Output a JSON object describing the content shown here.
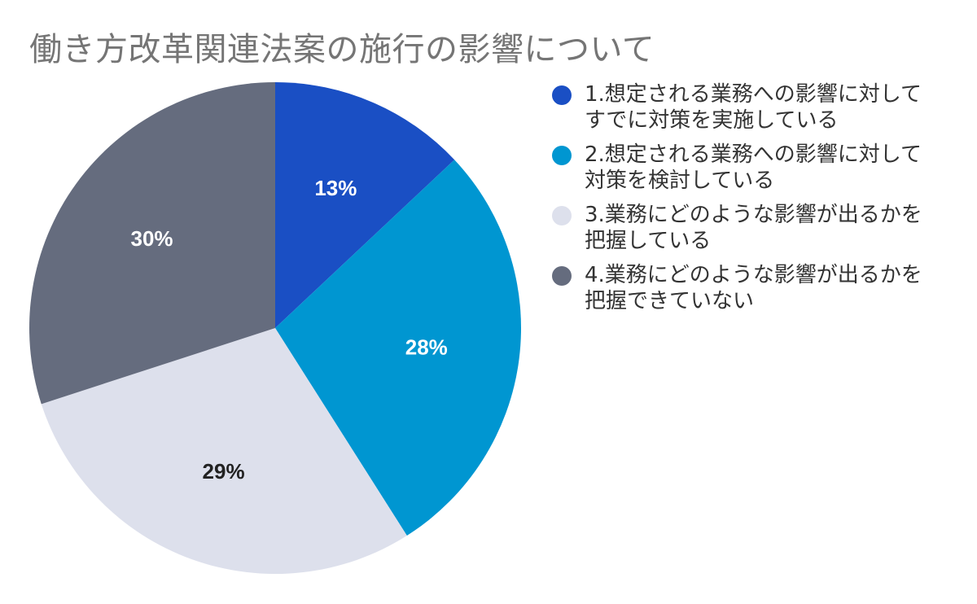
{
  "chart_data": {
    "type": "pie",
    "title": "働き方改革関連法案の施行の影響について",
    "slices": [
      {
        "label": "1.想定される業務への影響に対してすでに対策を実施している",
        "value": 13,
        "display": "13%",
        "color": "#1a4fc4",
        "label_color": "#ffffff"
      },
      {
        "label": "2.想定される業務への影響に対して対策を検討している",
        "value": 28,
        "display": "28%",
        "color": "#0096d1",
        "label_color": "#ffffff"
      },
      {
        "label": "3.業務にどのような影響が出るかを把握している",
        "value": 29,
        "display": "29%",
        "color": "#dde0ec",
        "label_color": "#222222"
      },
      {
        "label": "4.業務にどのような影響が出るかを把握できていない",
        "value": 30,
        "display": "30%",
        "color": "#656c7e",
        "label_color": "#ffffff"
      }
    ],
    "legend_position": "right"
  }
}
